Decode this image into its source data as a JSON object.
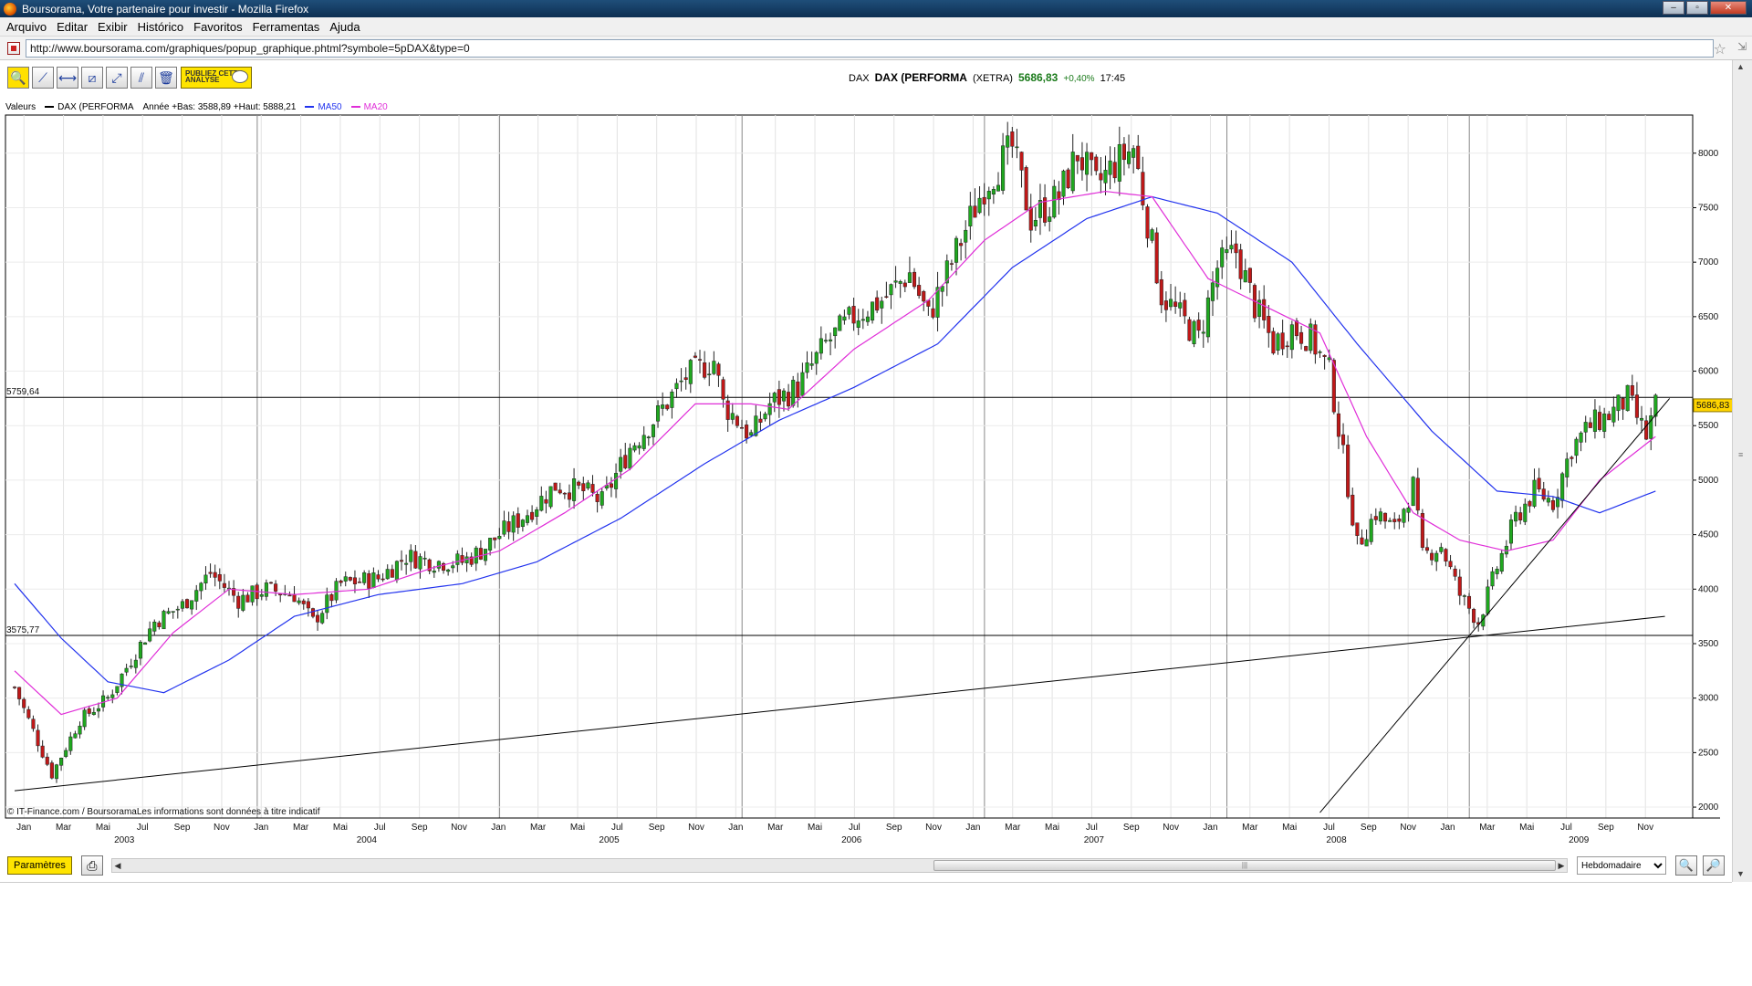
{
  "window": {
    "title": "Boursorama, Votre partenaire pour investir - Mozilla Firefox"
  },
  "menu": [
    "Arquivo",
    "Editar",
    "Exibir",
    "Histórico",
    "Favoritos",
    "Ferramentas",
    "Ajuda"
  ],
  "address": {
    "url": "http://www.boursorama.com/graphiques/popup_graphique.phtml?symbole=5pDAX&type=0"
  },
  "toolbar": {
    "tools": [
      {
        "name": "zoom-tool-button",
        "glyph": "🔍"
      },
      {
        "name": "trendline-tool-button",
        "glyph": "⟋"
      },
      {
        "name": "horizontal-line-tool-button",
        "glyph": "⟷"
      },
      {
        "name": "channel-tool-button",
        "glyph": "⧄"
      },
      {
        "name": "fibonacci-tool-button",
        "glyph": "⤢"
      },
      {
        "name": "parallel-tool-button",
        "glyph": "⫽"
      },
      {
        "name": "delete-tool-button",
        "glyph": "🗑"
      }
    ],
    "publish_label": "PUBLIEZ CETTE ANALYSE"
  },
  "quote": {
    "code": "DAX",
    "name": "DAX (PERFORMA",
    "market": "(XETRA)",
    "price": "5686,83",
    "change": "+0,40%",
    "time": "17:45"
  },
  "legend": {
    "valeurs": "Valeurs",
    "instrument": "DAX (PERFORMA",
    "year_range": "Année +Bas: 3588,89 +Haut: 5888,21",
    "ma50": "MA50",
    "ma20": "MA20"
  },
  "chart_data": {
    "type": "candlestick",
    "period": "weekly",
    "ylim": [
      1900,
      8350
    ],
    "yticks": [
      2000,
      2500,
      3000,
      3500,
      4000,
      4500,
      5000,
      5500,
      6000,
      6500,
      7000,
      7500,
      8000
    ],
    "x_months": [
      "Jan",
      "Mar",
      "Mai",
      "Jul",
      "Sep",
      "Nov",
      "Jan",
      "Mar",
      "Mai",
      "Jul",
      "Sep",
      "Nov",
      "Jan",
      "Mar",
      "Mai",
      "Jul",
      "Sep",
      "Nov",
      "Jan",
      "Mar",
      "Mai",
      "Jul",
      "Sep",
      "Nov",
      "Jan",
      "Mar",
      "Mai",
      "Jul",
      "Sep",
      "Nov",
      "Jan",
      "Mar",
      "Mai",
      "Jul",
      "Sep",
      "Nov",
      "Jan",
      "Mar",
      "Mai",
      "Jul",
      "Sep",
      "Nov"
    ],
    "x_years": [
      "2003",
      "2004",
      "2005",
      "2006",
      "2007",
      "2008",
      "2009"
    ],
    "keypoints": [
      [
        0,
        3100
      ],
      [
        4,
        2700
      ],
      [
        8,
        2300
      ],
      [
        14,
        2800
      ],
      [
        20,
        3000
      ],
      [
        25,
        3350
      ],
      [
        30,
        3700
      ],
      [
        36,
        3850
      ],
      [
        42,
        4150
      ],
      [
        48,
        3900
      ],
      [
        54,
        4000
      ],
      [
        60,
        3950
      ],
      [
        64,
        3700
      ],
      [
        70,
        4050
      ],
      [
        78,
        4100
      ],
      [
        84,
        4300
      ],
      [
        90,
        4250
      ],
      [
        96,
        4250
      ],
      [
        100,
        4350
      ],
      [
        104,
        4500
      ],
      [
        110,
        4700
      ],
      [
        116,
        4950
      ],
      [
        122,
        4900
      ],
      [
        126,
        4800
      ],
      [
        132,
        5300
      ],
      [
        138,
        5600
      ],
      [
        144,
        5950
      ],
      [
        150,
        6100
      ],
      [
        152,
        5700
      ],
      [
        158,
        5400
      ],
      [
        162,
        5700
      ],
      [
        168,
        5850
      ],
      [
        174,
        6250
      ],
      [
        180,
        6500
      ],
      [
        186,
        6650
      ],
      [
        192,
        6900
      ],
      [
        196,
        6500
      ],
      [
        202,
        7100
      ],
      [
        208,
        7700
      ],
      [
        214,
        8050
      ],
      [
        218,
        7400
      ],
      [
        224,
        7600
      ],
      [
        228,
        8000
      ],
      [
        232,
        7700
      ],
      [
        236,
        7900
      ],
      [
        240,
        8050
      ],
      [
        242,
        7600
      ],
      [
        246,
        6700
      ],
      [
        250,
        6500
      ],
      [
        254,
        6300
      ],
      [
        258,
        6950
      ],
      [
        262,
        7100
      ],
      [
        266,
        6600
      ],
      [
        270,
        6250
      ],
      [
        274,
        6400
      ],
      [
        278,
        6300
      ],
      [
        282,
        6000
      ],
      [
        286,
        4950
      ],
      [
        288,
        4400
      ],
      [
        292,
        4700
      ],
      [
        296,
        4550
      ],
      [
        300,
        4950
      ],
      [
        302,
        4300
      ],
      [
        306,
        4400
      ],
      [
        310,
        3950
      ],
      [
        314,
        3700
      ],
      [
        318,
        4200
      ],
      [
        322,
        4650
      ],
      [
        326,
        4900
      ],
      [
        330,
        4800
      ],
      [
        334,
        5300
      ],
      [
        338,
        5500
      ],
      [
        342,
        5600
      ],
      [
        346,
        5750
      ],
      [
        350,
        5400
      ],
      [
        352,
        5686
      ]
    ],
    "ma20_points": [
      [
        0,
        3250
      ],
      [
        10,
        2850
      ],
      [
        22,
        3000
      ],
      [
        34,
        3600
      ],
      [
        46,
        4000
      ],
      [
        60,
        3950
      ],
      [
        76,
        4000
      ],
      [
        90,
        4200
      ],
      [
        104,
        4350
      ],
      [
        118,
        4700
      ],
      [
        132,
        5100
      ],
      [
        146,
        5700
      ],
      [
        158,
        5700
      ],
      [
        166,
        5650
      ],
      [
        180,
        6200
      ],
      [
        196,
        6650
      ],
      [
        208,
        7200
      ],
      [
        220,
        7550
      ],
      [
        234,
        7650
      ],
      [
        244,
        7600
      ],
      [
        256,
        6850
      ],
      [
        268,
        6600
      ],
      [
        280,
        6350
      ],
      [
        290,
        5400
      ],
      [
        300,
        4700
      ],
      [
        310,
        4450
      ],
      [
        320,
        4350
      ],
      [
        330,
        4450
      ],
      [
        340,
        5000
      ],
      [
        352,
        5400
      ]
    ],
    "ma50_points": [
      [
        0,
        4050
      ],
      [
        10,
        3550
      ],
      [
        20,
        3150
      ],
      [
        32,
        3050
      ],
      [
        46,
        3350
      ],
      [
        60,
        3750
      ],
      [
        78,
        3950
      ],
      [
        96,
        4050
      ],
      [
        112,
        4250
      ],
      [
        130,
        4650
      ],
      [
        148,
        5150
      ],
      [
        164,
        5550
      ],
      [
        180,
        5850
      ],
      [
        198,
        6250
      ],
      [
        214,
        6950
      ],
      [
        230,
        7400
      ],
      [
        244,
        7600
      ],
      [
        258,
        7450
      ],
      [
        274,
        7000
      ],
      [
        288,
        6250
      ],
      [
        304,
        5450
      ],
      [
        318,
        4900
      ],
      [
        330,
        4850
      ],
      [
        340,
        4700
      ],
      [
        352,
        4900
      ]
    ],
    "hlines": [
      {
        "value": 5759.64,
        "label": "5759,64"
      },
      {
        "value": 3575.77,
        "label": "3575,77"
      }
    ],
    "trendlines": [
      {
        "from": [
          0,
          2150
        ],
        "to": [
          354,
          3750
        ]
      },
      {
        "from": [
          280,
          1950
        ],
        "to": [
          355,
          5750
        ]
      }
    ],
    "last_price_label": "5686,83",
    "source_note": "© IT-Finance.com / BoursoramaLes informations sont données à titre indicatif",
    "colors": {
      "up": "#1fa81f",
      "down": "#c01818",
      "ma50": "#2233ee",
      "ma20": "#e02ed8",
      "price_label_bg": "#ffd400"
    }
  },
  "bottom": {
    "params_label": "Paramètres",
    "period_options": [
      "Hebdomadaire"
    ],
    "period_selected": "Hebdomadaire"
  }
}
